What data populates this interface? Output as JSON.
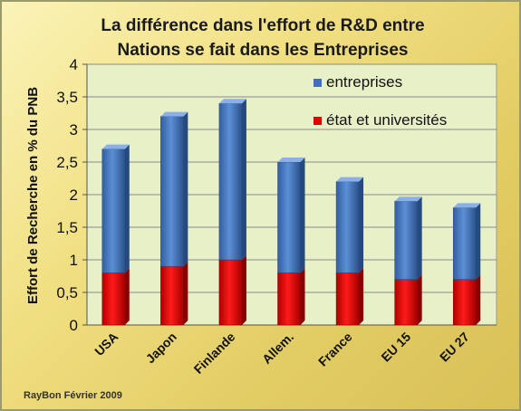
{
  "chart_data": {
    "type": "bar",
    "stacked": true,
    "title_lines": [
      "La différence dans l'effort de R&D entre",
      "Nations se fait dans les Entreprises"
    ],
    "ylabel": "Effort de Recherche en % du PNB",
    "xlabel": "",
    "ylim": [
      0,
      4
    ],
    "yticks": [
      "0",
      "0,5",
      "1",
      "1,5",
      "2",
      "2,5",
      "3",
      "3,5",
      "4"
    ],
    "categories": [
      "USA",
      "Japon",
      "Finlande",
      "Allem.",
      "France",
      "EU 15",
      "EU 27"
    ],
    "series": [
      {
        "name": "état et universités",
        "values": [
          0.8,
          0.9,
          1.0,
          0.8,
          0.8,
          0.7,
          0.7
        ],
        "color": "#e00000"
      },
      {
        "name": "entreprises",
        "values": [
          1.9,
          2.3,
          2.4,
          1.7,
          1.4,
          1.2,
          1.1
        ],
        "color": "#3f6fb8"
      }
    ],
    "legend_order": [
      "entreprises",
      "état et universités"
    ],
    "legend_position": "top-right",
    "grid": true,
    "plot_background": "#e8f0c8"
  },
  "credit": "RayBon Février 2009"
}
